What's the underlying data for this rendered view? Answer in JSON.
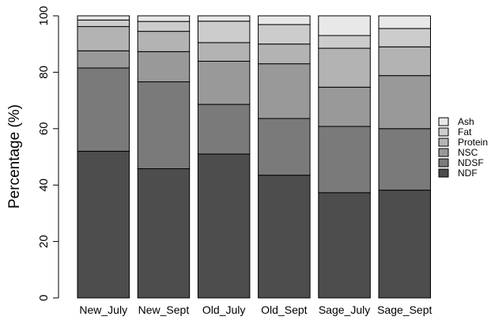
{
  "chart_data": {
    "type": "bar",
    "stacked": true,
    "ylabel": "Percentage (%)",
    "xlabel": "",
    "ylim": [
      0,
      100
    ],
    "yticks": [
      0,
      20,
      40,
      60,
      80,
      100
    ],
    "categories": [
      "New_July",
      "New_Sept",
      "Old_July",
      "Old_Sept",
      "Sage_July",
      "Sage_Sept"
    ],
    "series": [
      {
        "name": "NDF",
        "color": "#4d4d4d",
        "values": [
          52.0,
          45.8,
          51.0,
          43.5,
          37.3,
          38.2
        ]
      },
      {
        "name": "NDSF",
        "color": "#7a7a7a",
        "values": [
          29.5,
          30.8,
          17.6,
          20.1,
          23.5,
          21.8
        ]
      },
      {
        "name": "NSC",
        "color": "#999999",
        "values": [
          6.1,
          10.7,
          15.3,
          19.4,
          13.9,
          18.8
        ]
      },
      {
        "name": "Protein",
        "color": "#b3b3b3",
        "values": [
          8.6,
          7.2,
          6.6,
          7.0,
          13.8,
          10.2
        ]
      },
      {
        "name": "Fat",
        "color": "#cccccc",
        "values": [
          2.3,
          3.5,
          7.6,
          6.9,
          4.5,
          6.5
        ]
      },
      {
        "name": "Ash",
        "color": "#e8e8e8",
        "values": [
          1.5,
          2.0,
          1.9,
          3.1,
          7.0,
          4.5
        ]
      }
    ],
    "legend_position": "right"
  }
}
